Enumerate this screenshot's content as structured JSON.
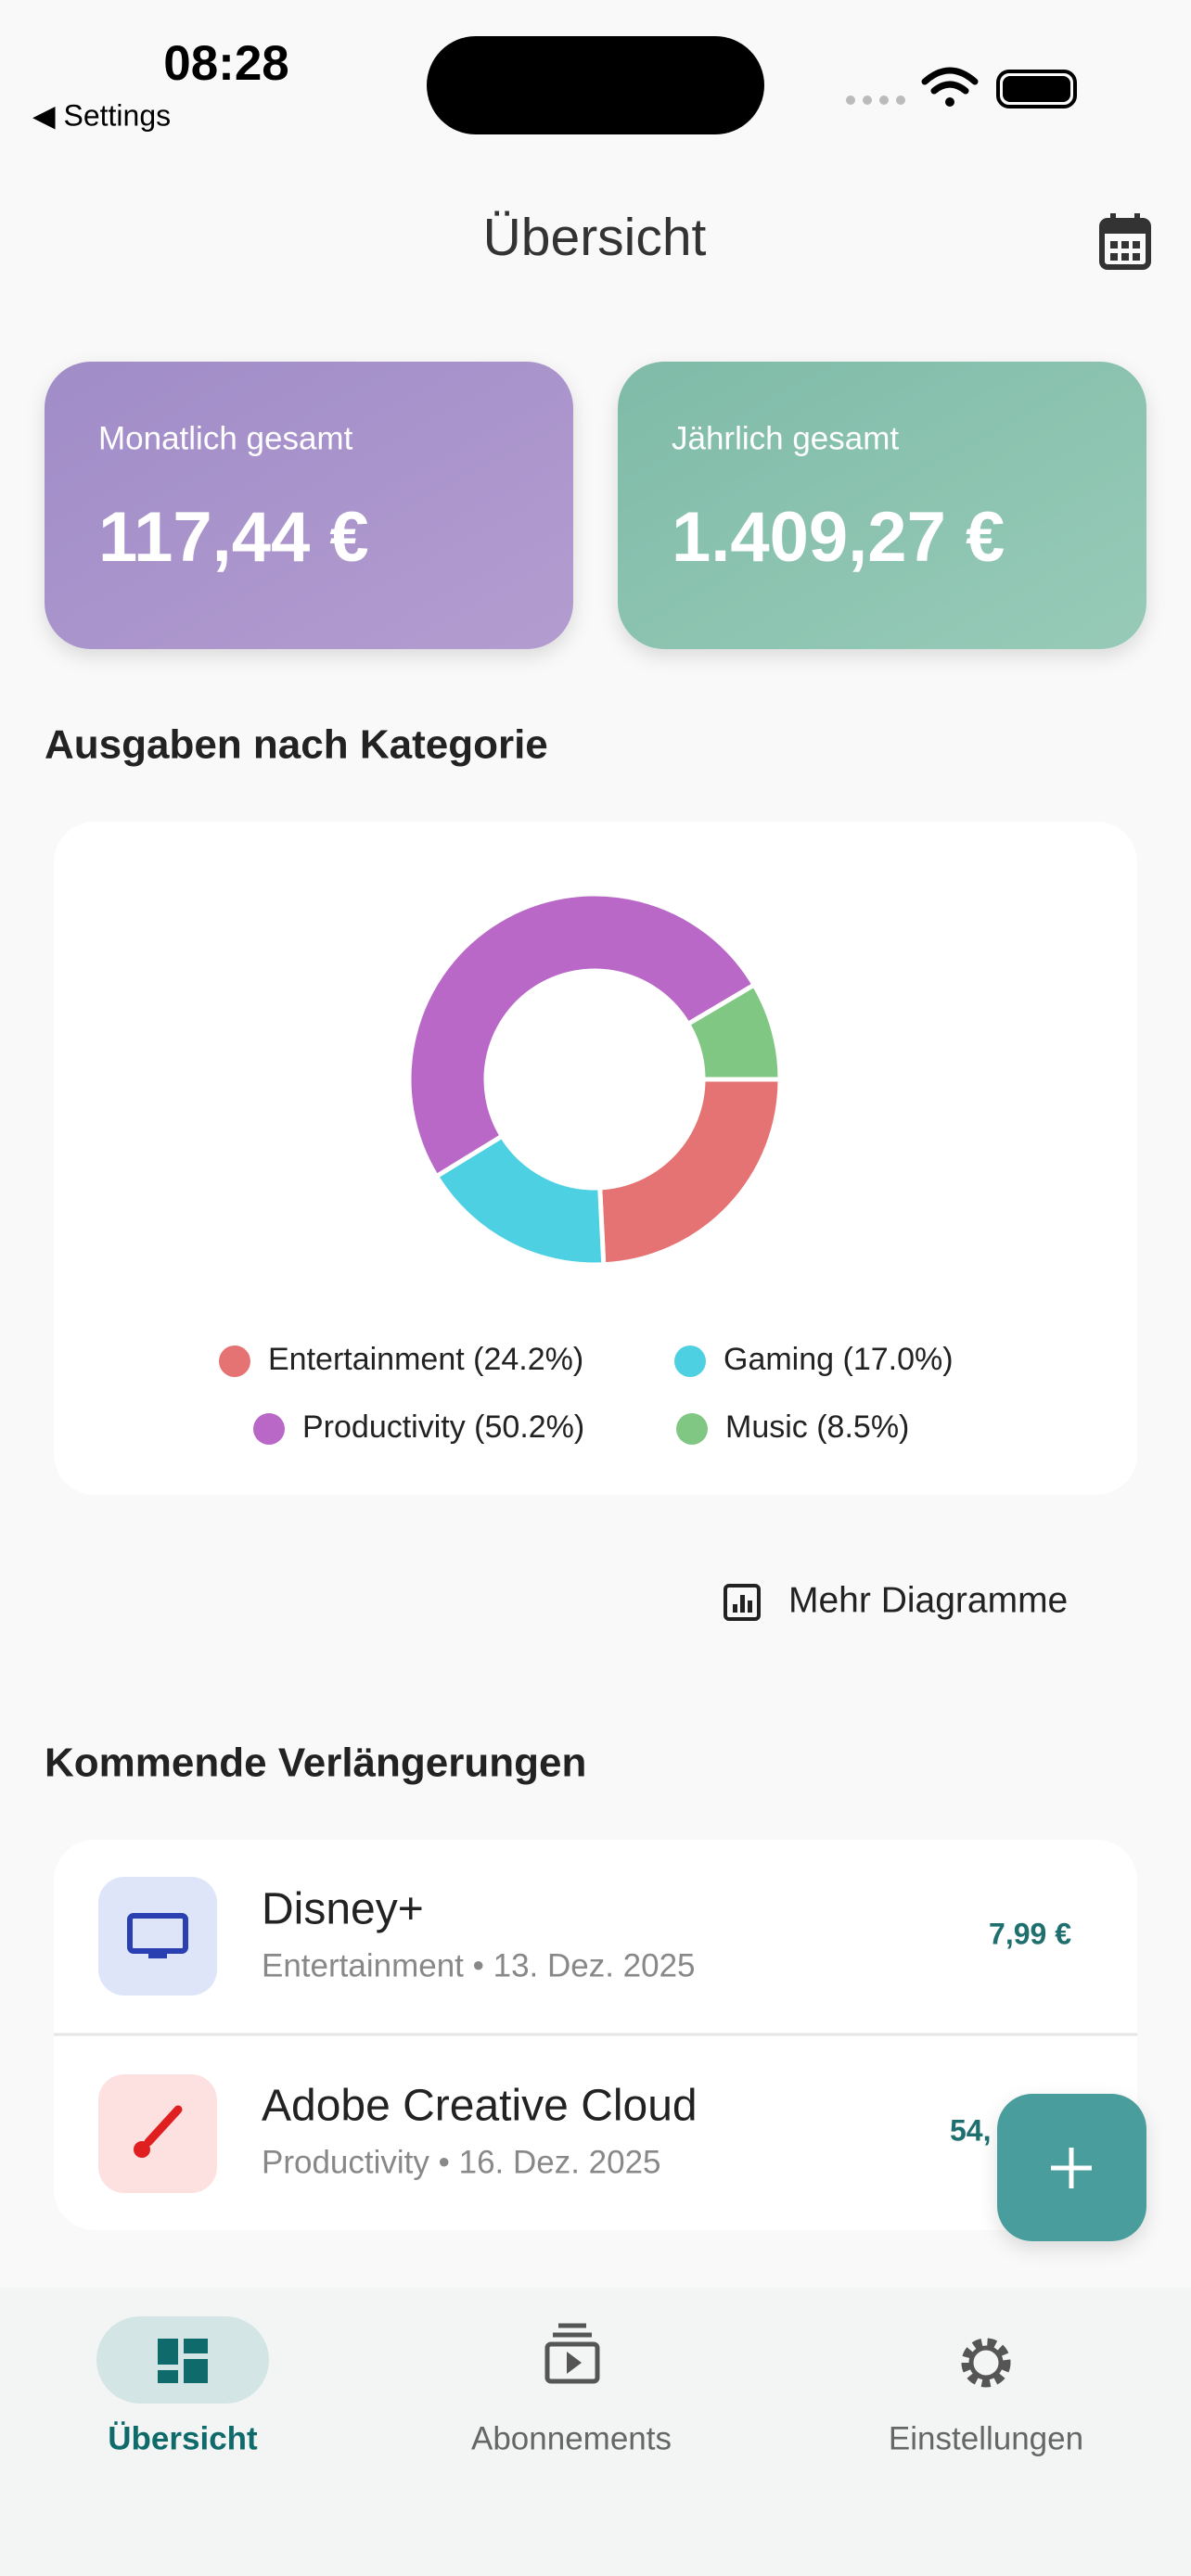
{
  "status_bar": {
    "time": "08:28",
    "back": "◀ Settings"
  },
  "header": {
    "title": "Übersicht"
  },
  "cards": [
    {
      "label": "Monatlich gesamt",
      "value": "117,44 €"
    },
    {
      "label": "Jährlich gesamt",
      "value": "1.409,27 €"
    }
  ],
  "section_title": "Ausgaben nach Kategorie",
  "chart_data": {
    "type": "pie",
    "categories": [
      "Entertainment (24.2%)",
      "Gaming (17.0%)",
      "Productivity (50.2%)",
      "Music (8.5%)"
    ],
    "values": [
      24.2,
      17.0,
      50.2,
      8.5
    ],
    "colors": [
      "#e57373",
      "#4dd0e1",
      "#ba68c8",
      "#81c784"
    ],
    "donut": true
  },
  "more_charts": "Mehr Diagramme",
  "upcoming": {
    "title": "Kommende Verlängerungen",
    "items": [
      {
        "name": "Disney+",
        "subtitle": "Entertainment • 13. Dez. 2025",
        "price": "7,99 €"
      },
      {
        "name": "Adobe Creative Cloud",
        "subtitle": "Productivity • 16. Dez. 2025",
        "price": "54,"
      }
    ]
  },
  "nav": [
    "Übersicht",
    "Abonnements",
    "Einstellungen"
  ]
}
